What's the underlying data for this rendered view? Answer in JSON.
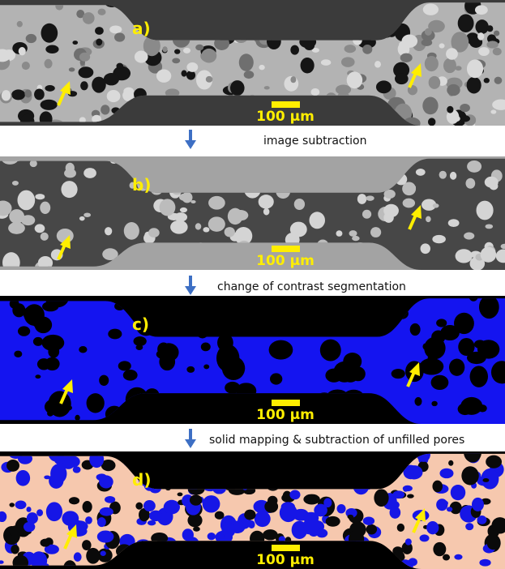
{
  "panels": [
    {
      "label": "a)",
      "scale_bar": "100 µm"
    },
    {
      "label": "b)",
      "scale_bar": "100 µm"
    },
    {
      "label": "c)",
      "scale_bar": "100 µm"
    },
    {
      "label": "d)",
      "scale_bar": "100 µm"
    }
  ],
  "steps": [
    "image subtraction",
    "change of contrast segmentation",
    "solid mapping & subtraction of unfilled pores"
  ]
}
